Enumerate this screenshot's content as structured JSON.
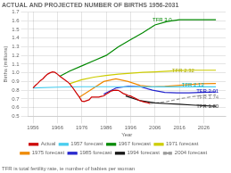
{
  "chart_data": {
    "type": "line",
    "title": "ACTUAL AND PROJECTED NUMBER OF BIRTHS 1956-2031",
    "ylabel": "Births (millions)",
    "xlabel": "Year",
    "footnote": "TFR is total fertility rate, ie number of babies per woman",
    "xlim": [
      1954,
      2035
    ],
    "xticks": [
      1956,
      1966,
      1976,
      1986,
      1996,
      2006,
      2016,
      2026
    ],
    "ylim": [
      0.5,
      1.7
    ],
    "yticks": [
      0.5,
      0.6,
      0.7,
      0.8,
      0.9,
      {
        "value": 1.0,
        "label": "1.0"
      },
      1.1,
      1.2,
      1.3,
      1.4,
      1.5,
      1.6,
      1.7
    ],
    "grid": true,
    "legend": "bottom",
    "annotations": [
      {
        "text": "TFR 3.0",
        "x": 2005,
        "y": 1.605,
        "color": "#008800"
      },
      {
        "text": "TFR 2.32",
        "x": 2013,
        "y": 1.025,
        "color": "#aaaa00"
      },
      {
        "text": "TFR 2.12",
        "x": 2017,
        "y": 0.86,
        "color": "#00aaaa"
      },
      {
        "text": "TFR 2.01",
        "x": 2023,
        "y": 0.79,
        "color": "#0000bb"
      },
      {
        "text": "TFR 1.74",
        "x": 2023,
        "y": 0.74,
        "color": "#888888"
      },
      {
        "text": "TFR 1.80",
        "x": 2023,
        "y": 0.615,
        "color": "#333333"
      }
    ],
    "series": [
      {
        "name": "Actual",
        "color": "#cc0000",
        "line_style": "solid",
        "x": [
          1956,
          1957,
          1958,
          1959,
          1960,
          1961,
          1962,
          1963,
          1964,
          1965,
          1966,
          1967,
          1968,
          1969,
          1970,
          1971,
          1972,
          1973,
          1974,
          1975,
          1976,
          1977,
          1978,
          1979,
          1980,
          1981,
          1982,
          1983,
          1984,
          1985,
          1986,
          1987,
          1988,
          1989,
          1990,
          1991,
          1992,
          1993,
          1994,
          1995,
          1996,
          1997,
          1998,
          1999,
          2000,
          2001,
          2002,
          2003,
          2004
        ],
        "values": [
          0.825,
          0.855,
          0.88,
          0.91,
          0.93,
          0.96,
          0.985,
          1.0,
          1.01,
          1.005,
          0.985,
          0.96,
          0.94,
          0.92,
          0.9,
          0.875,
          0.84,
          0.8,
          0.76,
          0.72,
          0.675,
          0.67,
          0.68,
          0.69,
          0.72,
          0.72,
          0.72,
          0.72,
          0.728,
          0.735,
          0.755,
          0.77,
          0.79,
          0.798,
          0.8,
          0.798,
          0.781,
          0.762,
          0.752,
          0.74,
          0.733,
          0.72,
          0.706,
          0.69,
          0.679,
          0.669,
          0.661,
          0.655,
          0.645
        ]
      },
      {
        "name": "1957 forecast",
        "color": "#44ccee",
        "line_style": "solid",
        "x": [
          1956,
          1966,
          1976,
          1986,
          1996,
          2006,
          2016,
          2026,
          2031
        ],
        "values": [
          0.825,
          0.835,
          0.84,
          0.84,
          0.84,
          0.838,
          0.838,
          0.838,
          0.838
        ]
      },
      {
        "name": "1967 forecast",
        "color": "#008800",
        "line_style": "solid",
        "x": [
          1967,
          1971,
          1976,
          1981,
          1986,
          1991,
          1996,
          2001,
          2006,
          2011,
          2016,
          2021,
          2026,
          2031
        ],
        "values": [
          0.96,
          1.02,
          1.08,
          1.14,
          1.2,
          1.3,
          1.38,
          1.46,
          1.55,
          1.59,
          1.61,
          1.61,
          1.61,
          1.61
        ]
      },
      {
        "name": "1971 forecast",
        "color": "#cccc00",
        "line_style": "solid",
        "x": [
          1971,
          1976,
          1981,
          1986,
          1991,
          1996,
          2001,
          2006,
          2011,
          2016,
          2021,
          2026,
          2031
        ],
        "values": [
          0.875,
          0.92,
          0.95,
          0.97,
          0.985,
          0.995,
          1.005,
          1.01,
          1.018,
          1.025,
          1.03,
          1.03,
          1.03
        ]
      },
      {
        "name": "1975 forecast",
        "color": "#ee8800",
        "line_style": "solid",
        "x": [
          1975,
          1980,
          1985,
          1990,
          1995,
          2000,
          2005,
          2010,
          2015,
          2020,
          2025,
          2031
        ],
        "values": [
          0.72,
          0.81,
          0.9,
          0.93,
          0.9,
          0.855,
          0.84,
          0.845,
          0.855,
          0.865,
          0.875,
          0.878
        ]
      },
      {
        "name": "1985 forecast",
        "color": "#2222cc",
        "line_style": "solid",
        "x": [
          1985,
          1990,
          1995,
          2000,
          2005,
          2010,
          2015,
          2020,
          2025,
          2031
        ],
        "values": [
          0.755,
          0.825,
          0.845,
          0.84,
          0.8,
          0.775,
          0.77,
          0.77,
          0.775,
          0.78
        ]
      },
      {
        "name": "1994 forecast",
        "color": "#111111",
        "line_style": "solid",
        "x": [
          1994,
          2000,
          2006,
          2011,
          2016,
          2021,
          2026,
          2031
        ],
        "values": [
          0.733,
          0.679,
          0.655,
          0.645,
          0.638,
          0.63,
          0.622,
          0.615
        ]
      },
      {
        "name": "2004 forecast",
        "color": "#999999",
        "line_style": "dashed",
        "x": [
          2004,
          2011,
          2016,
          2021,
          2026,
          2031
        ],
        "values": [
          0.645,
          0.67,
          0.7,
          0.725,
          0.742,
          0.75
        ]
      }
    ]
  }
}
